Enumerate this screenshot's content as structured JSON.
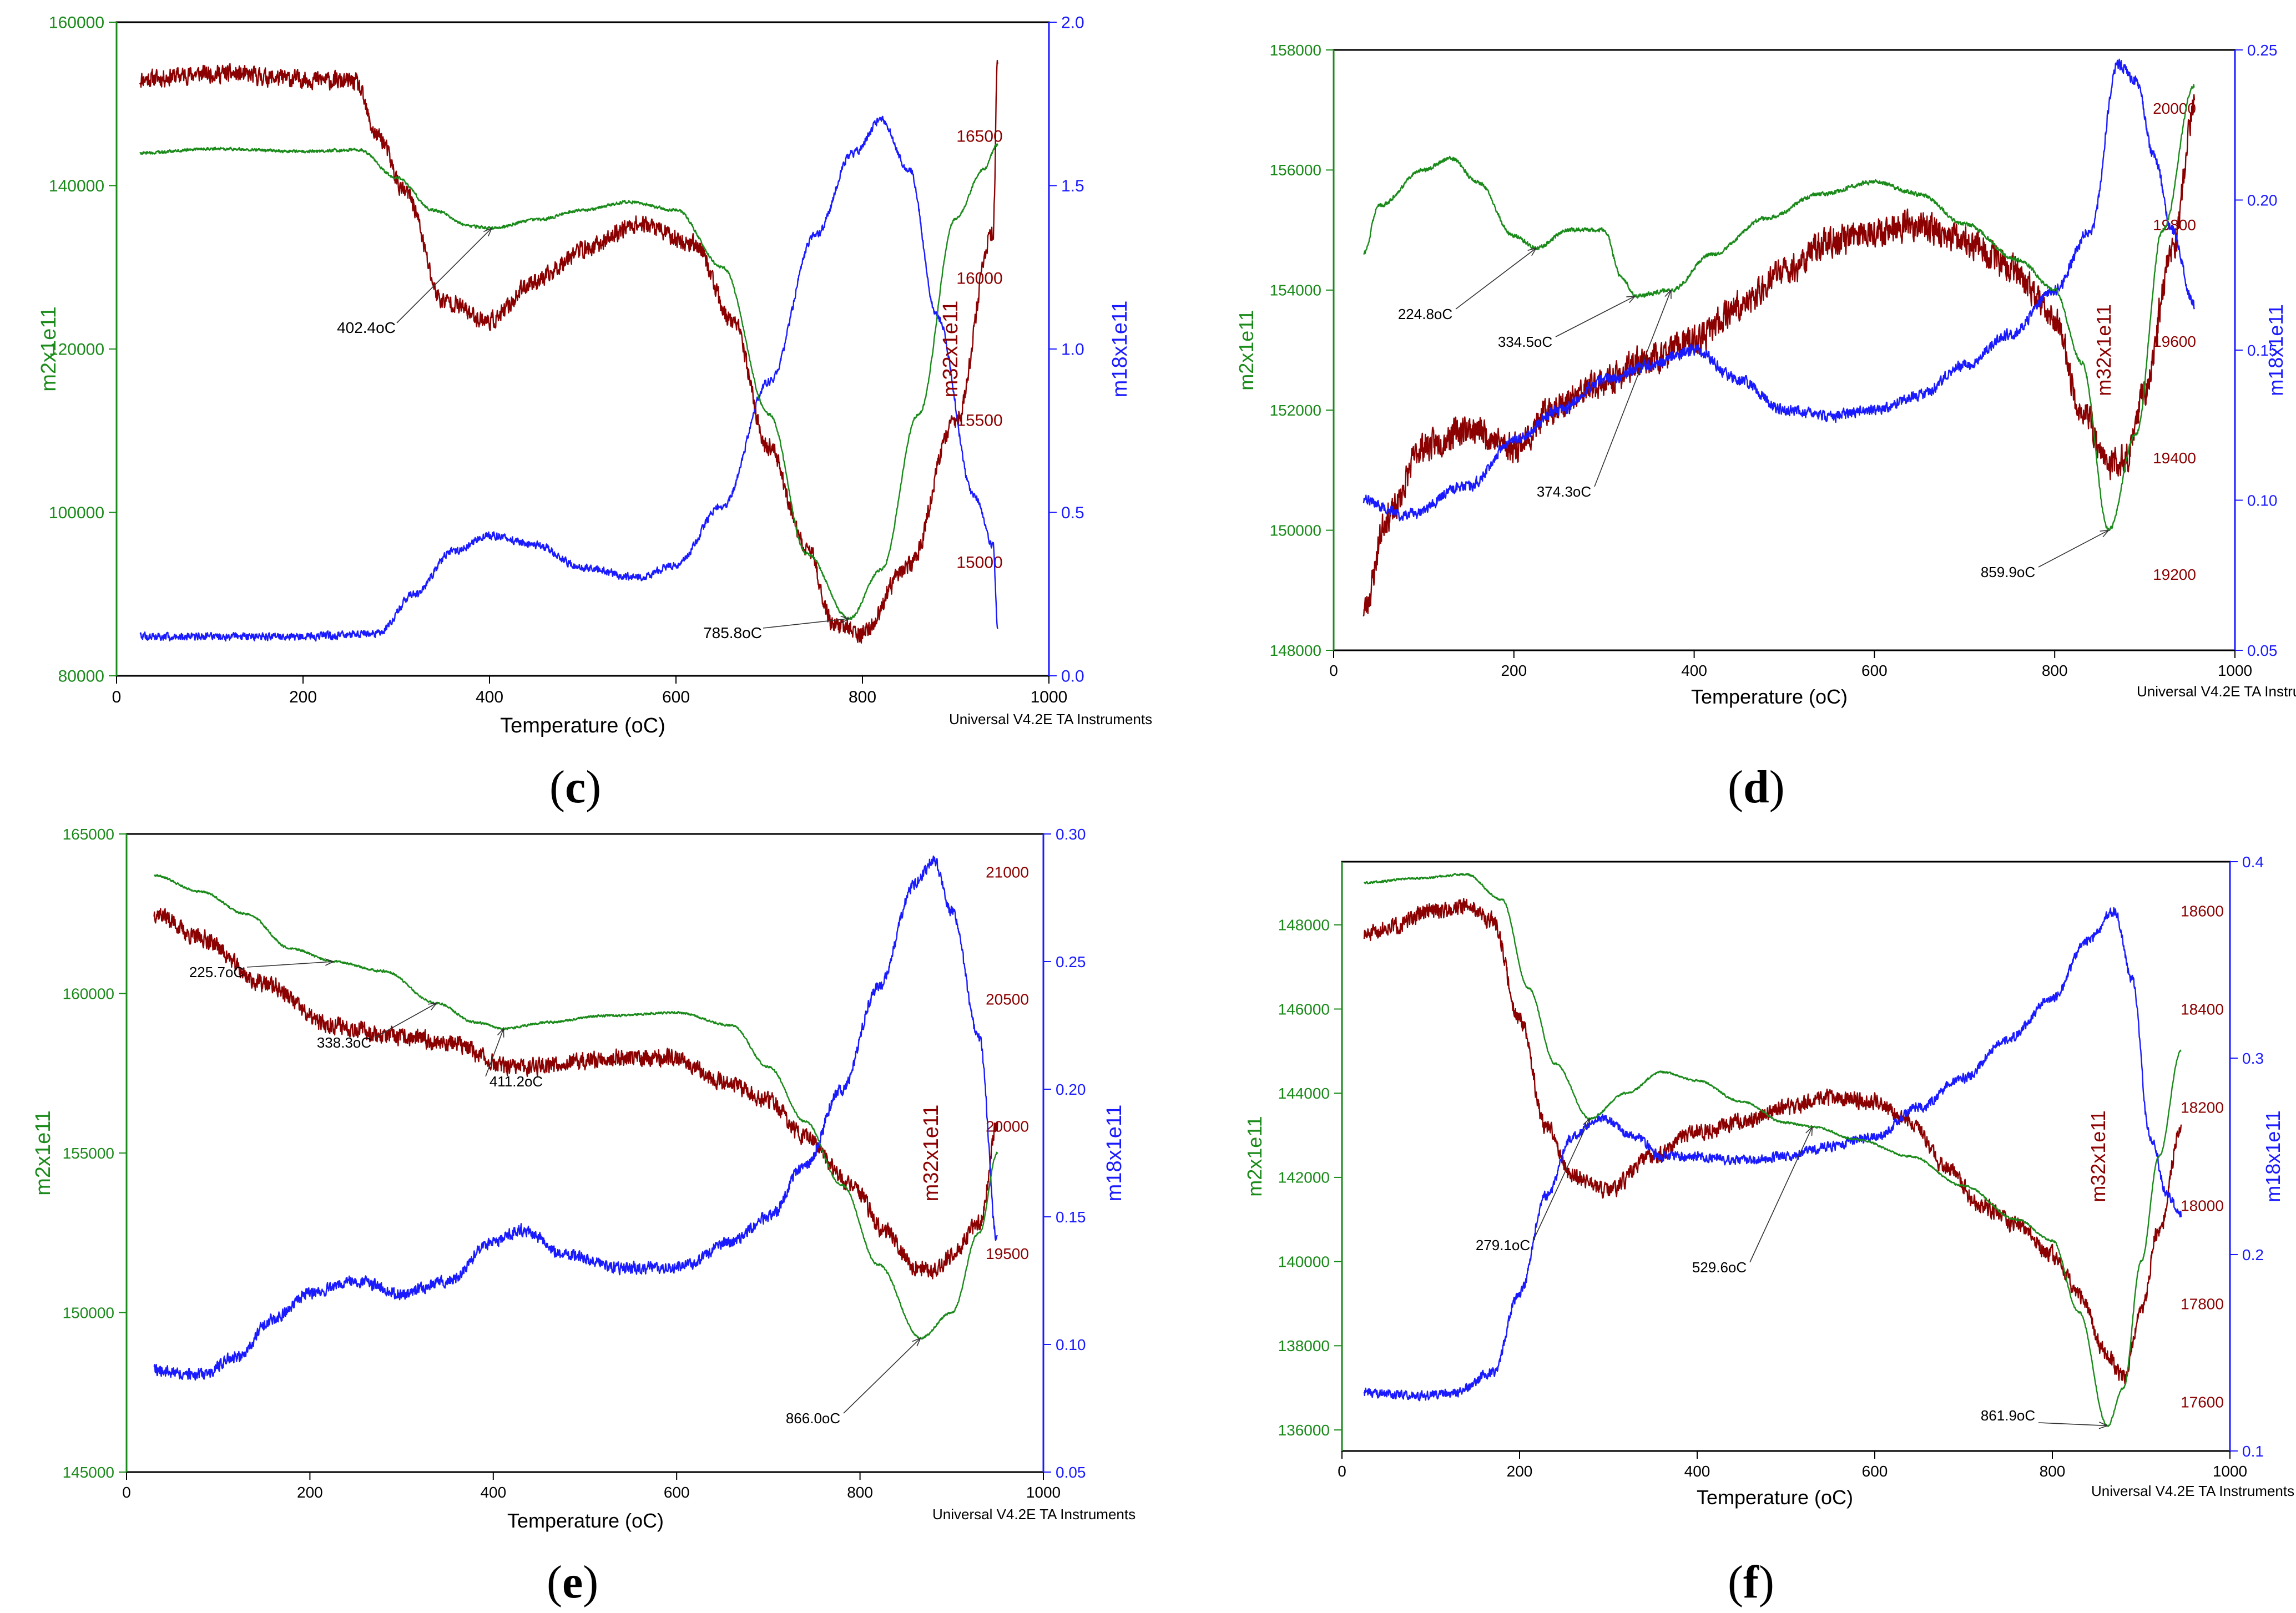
{
  "colors": {
    "m2": "#1a8a1a",
    "m32": "#8b0000",
    "m18": "#1a1aff",
    "axis": "#000000",
    "annotation": "#333333"
  },
  "panels": [
    {
      "id": "c",
      "label_open": "(",
      "label_letter": "c",
      "label_close": ")",
      "xlabel": "Temperature (oC)",
      "credit": "Universal V4.2E TA Instruments",
      "y_left_label": "m2x1e11",
      "y_right_label": "m18x1e11",
      "m32_label": "m32x1e11",
      "x_ticks": [
        "0",
        "200",
        "400",
        "600",
        "800",
        "1000"
      ],
      "y_left_ticks": [
        "80000",
        "100000",
        "120000",
        "140000",
        "160000"
      ],
      "y_right_ticks": [
        "0.0",
        "0.5",
        "1.0",
        "1.5",
        "2.0"
      ],
      "m32_ticks": [
        "15000",
        "15500",
        "16000",
        "16500"
      ],
      "annotations": [
        {
          "text": "402.4oC",
          "x": 402.4,
          "series": "m2"
        },
        {
          "text": "785.8oC",
          "x": 785.8,
          "series": "m2"
        }
      ]
    },
    {
      "id": "d",
      "label_open": "(",
      "label_letter": "d",
      "label_close": ")",
      "xlabel": "Temperature (oC)",
      "credit": "Universal V4.2E TA Instruments",
      "y_left_label": "m2x1e11",
      "y_right_label": "m18x1e11",
      "m32_label": "m32x1e11",
      "x_ticks": [
        "0",
        "200",
        "400",
        "600",
        "800",
        "1000"
      ],
      "y_left_ticks": [
        "148000",
        "150000",
        "152000",
        "154000",
        "156000",
        "158000"
      ],
      "y_right_ticks": [
        "0.05",
        "0.10",
        "0.15",
        "0.20",
        "0.25"
      ],
      "m32_ticks": [
        "19200",
        "19400",
        "19600",
        "19800",
        "20000"
      ],
      "annotations": [
        {
          "text": "224.8oC",
          "x": 224.8,
          "series": "m2"
        },
        {
          "text": "334.5oC",
          "x": 334.5,
          "series": "m2"
        },
        {
          "text": "374.3oC",
          "x": 374.3,
          "series": "m2"
        },
        {
          "text": "859.9oC",
          "x": 859.9,
          "series": "m2"
        }
      ]
    },
    {
      "id": "e",
      "label_open": "(",
      "label_letter": "e",
      "label_close": ")",
      "xlabel": "Temperature (oC)",
      "credit": "Universal V4.2E TA Instruments",
      "y_left_label": "m2x1e11",
      "y_right_label": "m18x1e11",
      "m32_label": "m32x1e11",
      "x_ticks": [
        "0",
        "200",
        "400",
        "600",
        "800",
        "1000"
      ],
      "y_left_ticks": [
        "145000",
        "150000",
        "155000",
        "160000",
        "165000"
      ],
      "y_right_ticks": [
        "0.05",
        "0.10",
        "0.15",
        "0.20",
        "0.25",
        "0.30"
      ],
      "m32_ticks": [
        "19500",
        "20000",
        "20500",
        "21000"
      ],
      "annotations": [
        {
          "text": "225.7oC",
          "x": 225.7,
          "series": "m2"
        },
        {
          "text": "338.3oC",
          "x": 338.3,
          "series": "m2"
        },
        {
          "text": "411.2oC",
          "x": 411.2,
          "series": "m2"
        },
        {
          "text": "866.0oC",
          "x": 866.0,
          "series": "m2"
        }
      ]
    },
    {
      "id": "f",
      "label_open": "(",
      "label_letter": "f",
      "label_close": ")",
      "xlabel": "Temperature (oC)",
      "credit": "Universal V4.2E TA Instruments",
      "y_left_label": "m2x1e11",
      "y_right_label": "m18x1e11",
      "m32_label": "m32x1e11",
      "x_ticks": [
        "0",
        "200",
        "400",
        "600",
        "800",
        "1000"
      ],
      "y_left_ticks": [
        "136000",
        "138000",
        "140000",
        "142000",
        "144000",
        "146000",
        "148000"
      ],
      "y_right_ticks": [
        "0.1",
        "0.2",
        "0.3",
        "0.4"
      ],
      "m32_ticks": [
        "17600",
        "17800",
        "18000",
        "18200",
        "18400",
        "18600"
      ],
      "annotations": [
        {
          "text": "279.1oC",
          "x": 279.1,
          "series": "m2"
        },
        {
          "text": "529.6oC",
          "x": 529.6,
          "series": "m2"
        },
        {
          "text": "861.9oC",
          "x": 861.9,
          "series": "m2"
        }
      ]
    }
  ],
  "chart_data": [
    {
      "panel": "c",
      "type": "line",
      "title": "",
      "xlabel": "Temperature (oC)",
      "xlim": [
        0,
        1000
      ],
      "axes": {
        "m2": [
          80000,
          160000
        ],
        "m18": [
          0,
          2
        ],
        "m32": [
          14600,
          16900
        ]
      },
      "series": [
        {
          "name": "m2x1e11",
          "axis": "m2",
          "noise": 0.002,
          "x": [
            25,
            100,
            200,
            260,
            300,
            340,
            380,
            402,
            450,
            500,
            550,
            600,
            650,
            700,
            740,
            785.8,
            820,
            860,
            900,
            930,
            945
          ],
          "y": [
            144000,
            144500,
            144200,
            144400,
            141000,
            137000,
            135000,
            134800,
            135800,
            137000,
            138000,
            137000,
            130000,
            112000,
            95000,
            87000,
            93000,
            112000,
            136000,
            142000,
            145000
          ]
        },
        {
          "name": "m32x1e11",
          "axis": "m32",
          "noise": 0.012,
          "x": [
            25,
            100,
            200,
            255,
            280,
            310,
            350,
            400,
            450,
            500,
            560,
            620,
            660,
            700,
            740,
            770,
            800,
            850,
            900,
            940,
            945
          ],
          "y": [
            16700,
            16720,
            16700,
            16690,
            16500,
            16300,
            15920,
            15850,
            15990,
            16100,
            16190,
            16120,
            15850,
            15400,
            15050,
            14780,
            14750,
            14990,
            15500,
            16150,
            16750
          ]
        },
        {
          "name": "m18x1e11",
          "axis": "m18",
          "noise": 0.005,
          "x": [
            25,
            100,
            200,
            280,
            320,
            360,
            400,
            450,
            500,
            560,
            600,
            650,
            700,
            750,
            790,
            820,
            850,
            880,
            920,
            940,
            945
          ],
          "y": [
            0.12,
            0.12,
            0.12,
            0.13,
            0.25,
            0.38,
            0.43,
            0.4,
            0.33,
            0.3,
            0.34,
            0.52,
            0.9,
            1.35,
            1.6,
            1.7,
            1.55,
            1.1,
            0.55,
            0.4,
            0.15
          ]
        }
      ]
    },
    {
      "panel": "d",
      "type": "line",
      "title": "",
      "xlabel": "Temperature (oC)",
      "xlim": [
        0,
        1000
      ],
      "axes": {
        "m2": [
          148000,
          158000
        ],
        "m18": [
          0.05,
          0.25
        ],
        "m32": [
          19070,
          20100
        ]
      },
      "series": [
        {
          "name": "m2x1e11",
          "axis": "m2",
          "noise": 0.003,
          "x": [
            33,
            50,
            100,
            130,
            160,
            200,
            225,
            260,
            300,
            320,
            335,
            374,
            420,
            480,
            540,
            600,
            650,
            700,
            760,
            800,
            830,
            860,
            890,
            920,
            955
          ],
          "y": [
            154600,
            155400,
            156000,
            156200,
            155800,
            154900,
            154700,
            155000,
            155000,
            154200,
            153900,
            154000,
            154600,
            155200,
            155600,
            155800,
            155600,
            155100,
            154500,
            154000,
            152800,
            150000,
            151600,
            155000,
            157400
          ]
        },
        {
          "name": "m32x1e11",
          "axis": "m32",
          "noise": 0.022,
          "x": [
            33,
            60,
            100,
            150,
            200,
            250,
            300,
            350,
            400,
            450,
            500,
            550,
            600,
            650,
            700,
            750,
            800,
            830,
            860,
            880,
            900,
            930,
            955
          ],
          "y": [
            19140,
            19300,
            19420,
            19450,
            19420,
            19490,
            19530,
            19570,
            19600,
            19660,
            19720,
            19770,
            19790,
            19800,
            19770,
            19730,
            19640,
            19480,
            19390,
            19400,
            19520,
            19750,
            20000
          ]
        },
        {
          "name": "m18x1e11",
          "axis": "m18",
          "noise": 0.008,
          "x": [
            33,
            80,
            150,
            200,
            250,
            300,
            350,
            400,
            450,
            500,
            550,
            600,
            650,
            700,
            750,
            800,
            840,
            870,
            890,
            910,
            930,
            955
          ],
          "y": [
            0.1,
            0.095,
            0.105,
            0.12,
            0.13,
            0.14,
            0.145,
            0.15,
            0.14,
            0.13,
            0.128,
            0.13,
            0.135,
            0.145,
            0.155,
            0.17,
            0.19,
            0.245,
            0.24,
            0.215,
            0.19,
            0.165
          ]
        }
      ]
    },
    {
      "panel": "e",
      "type": "line",
      "title": "",
      "xlabel": "Temperature (oC)",
      "xlim": [
        0,
        1000
      ],
      "axes": {
        "m2": [
          145000,
          165000
        ],
        "m18": [
          0.05,
          0.3
        ],
        "m32": [
          18640,
          21150
        ]
      },
      "series": [
        {
          "name": "m2x1e11",
          "axis": "m2",
          "noise": 0.0015,
          "x": [
            30,
            80,
            130,
            180,
            226,
            280,
            338,
            380,
            411,
            460,
            520,
            600,
            660,
            700,
            740,
            780,
            820,
            866,
            900,
            930,
            950
          ],
          "y": [
            163700,
            163200,
            162500,
            161400,
            161000,
            160700,
            159700,
            159100,
            158900,
            159100,
            159300,
            159400,
            159000,
            157700,
            156000,
            154000,
            151500,
            149200,
            150000,
            152500,
            155000
          ]
        },
        {
          "name": "m32x1e11",
          "axis": "m32",
          "noise": 0.012,
          "x": [
            30,
            80,
            150,
            220,
            300,
            350,
            420,
            480,
            540,
            600,
            650,
            700,
            740,
            790,
            830,
            860,
            880,
            900,
            930,
            950
          ],
          "y": [
            20840,
            20740,
            20560,
            20400,
            20350,
            20330,
            20230,
            20250,
            20270,
            20270,
            20180,
            20100,
            19960,
            19770,
            19580,
            19450,
            19430,
            19490,
            19620,
            20000
          ]
        },
        {
          "name": "m18x1e11",
          "axis": "m18",
          "noise": 0.008,
          "x": [
            30,
            80,
            120,
            160,
            200,
            250,
            300,
            350,
            400,
            430,
            480,
            540,
            600,
            660,
            700,
            740,
            780,
            820,
            860,
            880,
            900,
            930,
            950
          ],
          "y": [
            0.09,
            0.088,
            0.095,
            0.11,
            0.12,
            0.125,
            0.12,
            0.125,
            0.14,
            0.145,
            0.135,
            0.13,
            0.13,
            0.14,
            0.15,
            0.17,
            0.2,
            0.24,
            0.28,
            0.29,
            0.27,
            0.22,
            0.14
          ]
        }
      ]
    },
    {
      "panel": "f",
      "type": "line",
      "title": "",
      "xlabel": "Temperature (oC)",
      "xlim": [
        0,
        1000
      ],
      "axes": {
        "m2": [
          135500,
          149500
        ],
        "m18": [
          0.1,
          0.4
        ],
        "m32": [
          17500,
          18700
        ]
      },
      "series": [
        {
          "name": "m2x1e11",
          "axis": "m2",
          "noise": 0.0015,
          "x": [
            25,
            80,
            140,
            180,
            210,
            240,
            279,
            320,
            360,
            400,
            450,
            500,
            530,
            580,
            640,
            700,
            760,
            800,
            830,
            862,
            880,
            900,
            920,
            945
          ],
          "y": [
            149000,
            149100,
            149200,
            148600,
            146500,
            144700,
            143400,
            144000,
            144500,
            144300,
            143800,
            143300,
            143200,
            142900,
            142500,
            141800,
            141000,
            140500,
            138800,
            136100,
            137000,
            140000,
            142500,
            145000
          ]
        },
        {
          "name": "m32x1e11",
          "axis": "m32",
          "noise": 0.012,
          "x": [
            25,
            60,
            100,
            140,
            170,
            200,
            230,
            260,
            300,
            350,
            400,
            450,
            500,
            550,
            600,
            640,
            680,
            720,
            760,
            800,
            830,
            860,
            880,
            900,
            920,
            945
          ],
          "y": [
            18550,
            18570,
            18600,
            18610,
            18580,
            18380,
            18160,
            18060,
            18030,
            18100,
            18150,
            18170,
            18200,
            18220,
            18210,
            18170,
            18080,
            18000,
            17960,
            17900,
            17820,
            17700,
            17650,
            17780,
            17950,
            18150
          ]
        },
        {
          "name": "m18x1e11",
          "axis": "m18",
          "noise": 0.007,
          "x": [
            25,
            80,
            130,
            170,
            200,
            230,
            260,
            290,
            330,
            360,
            400,
            450,
            500,
            550,
            600,
            650,
            700,
            750,
            800,
            840,
            870,
            890,
            910,
            930,
            945
          ],
          "y": [
            0.13,
            0.128,
            0.13,
            0.14,
            0.18,
            0.23,
            0.26,
            0.27,
            0.26,
            0.25,
            0.25,
            0.248,
            0.25,
            0.255,
            0.26,
            0.275,
            0.29,
            0.31,
            0.33,
            0.36,
            0.375,
            0.34,
            0.26,
            0.23,
            0.22
          ]
        }
      ]
    }
  ]
}
